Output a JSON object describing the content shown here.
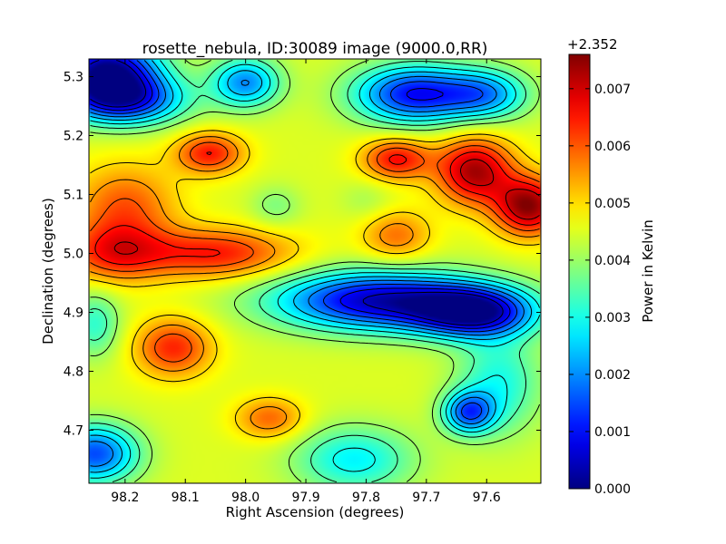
{
  "chart_data": {
    "type": "heatmap",
    "title": "rosette_nebula, ID:30089 image (9000.0,RR)",
    "xlabel": "Right Ascension (degrees)",
    "ylabel": "Declination (degrees)",
    "xlim": [
      98.26,
      97.51
    ],
    "ylim": [
      4.61,
      5.33
    ],
    "xticks": [
      98.2,
      98.1,
      98.0,
      97.9,
      97.8,
      97.7,
      97.6
    ],
    "xtick_labels": [
      "98.2",
      "98.1",
      "98.0",
      "97.9",
      "97.8",
      "97.7",
      "97.6"
    ],
    "yticks": [
      4.7,
      4.8,
      4.9,
      5.0,
      5.1,
      5.2,
      5.3
    ],
    "ytick_labels": [
      "4.7",
      "4.8",
      "4.9",
      "5.0",
      "5.1",
      "5.2",
      "5.3"
    ],
    "colorbar": {
      "label": "Power in Kelvin",
      "offset_label": "+2.352",
      "range": [
        0.0,
        0.0076
      ],
      "ticks": [
        0.0,
        0.001,
        0.002,
        0.003,
        0.004,
        0.005,
        0.006,
        0.007
      ],
      "tick_labels": [
        "0.000",
        "0.001",
        "0.002",
        "0.003",
        "0.004",
        "0.005",
        "0.006",
        "0.007"
      ],
      "colormap": "jet"
    },
    "background_level": 0.0045,
    "features": [
      {
        "ra": 98.23,
        "dec": 5.31,
        "value": 0.0002,
        "sra": 0.06,
        "sdec": 0.04
      },
      {
        "ra": 98.2,
        "dec": 5.26,
        "value": 0.0015,
        "sra": 0.07,
        "sdec": 0.03
      },
      {
        "ra": 98.0,
        "dec": 5.29,
        "value": 0.002,
        "sra": 0.04,
        "sdec": 0.03
      },
      {
        "ra": 97.72,
        "dec": 5.27,
        "value": 0.001,
        "sra": 0.07,
        "sdec": 0.035
      },
      {
        "ra": 97.6,
        "dec": 5.27,
        "value": 0.0024,
        "sra": 0.05,
        "sdec": 0.03
      },
      {
        "ra": 98.06,
        "dec": 5.17,
        "value": 0.0065,
        "sra": 0.04,
        "sdec": 0.025
      },
      {
        "ra": 97.75,
        "dec": 5.16,
        "value": 0.0066,
        "sra": 0.04,
        "sdec": 0.025
      },
      {
        "ra": 97.62,
        "dec": 5.14,
        "value": 0.0073,
        "sra": 0.045,
        "sdec": 0.04
      },
      {
        "ra": 97.53,
        "dec": 5.08,
        "value": 0.0075,
        "sra": 0.04,
        "sdec": 0.035
      },
      {
        "ra": 98.2,
        "dec": 5.08,
        "value": 0.006,
        "sra": 0.06,
        "sdec": 0.05
      },
      {
        "ra": 98.05,
        "dec": 5.0,
        "value": 0.0065,
        "sra": 0.09,
        "sdec": 0.03
      },
      {
        "ra": 98.22,
        "dec": 5.0,
        "value": 0.0062,
        "sra": 0.06,
        "sdec": 0.035
      },
      {
        "ra": 97.75,
        "dec": 5.03,
        "value": 0.0058,
        "sra": 0.04,
        "sdec": 0.03
      },
      {
        "ra": 97.95,
        "dec": 5.08,
        "value": 0.0038,
        "sra": 0.03,
        "sdec": 0.025
      },
      {
        "ra": 97.8,
        "dec": 5.09,
        "value": 0.0041,
        "sra": 0.03,
        "sdec": 0.025
      },
      {
        "ra": 97.78,
        "dec": 4.92,
        "value": 0.0005,
        "sra": 0.12,
        "sdec": 0.035
      },
      {
        "ra": 97.62,
        "dec": 4.9,
        "value": 0.0007,
        "sra": 0.07,
        "sdec": 0.03
      },
      {
        "ra": 98.12,
        "dec": 4.84,
        "value": 0.0064,
        "sra": 0.045,
        "sdec": 0.035
      },
      {
        "ra": 97.96,
        "dec": 4.72,
        "value": 0.0059,
        "sra": 0.04,
        "sdec": 0.025
      },
      {
        "ra": 98.25,
        "dec": 4.66,
        "value": 0.0015,
        "sra": 0.05,
        "sdec": 0.035
      },
      {
        "ra": 97.63,
        "dec": 4.73,
        "value": 0.0018,
        "sra": 0.03,
        "sdec": 0.025
      },
      {
        "ra": 97.82,
        "dec": 4.65,
        "value": 0.0028,
        "sra": 0.07,
        "sdec": 0.04
      },
      {
        "ra": 97.58,
        "dec": 4.78,
        "value": 0.003,
        "sra": 0.05,
        "sdec": 0.06
      },
      {
        "ra": 98.25,
        "dec": 4.88,
        "value": 0.0032,
        "sra": 0.03,
        "sdec": 0.04
      }
    ],
    "contour_levels": [
      0.0005,
      0.001,
      0.0015,
      0.002,
      0.0025,
      0.003,
      0.0035,
      0.004,
      0.005,
      0.0055,
      0.006,
      0.0065,
      0.007
    ]
  }
}
